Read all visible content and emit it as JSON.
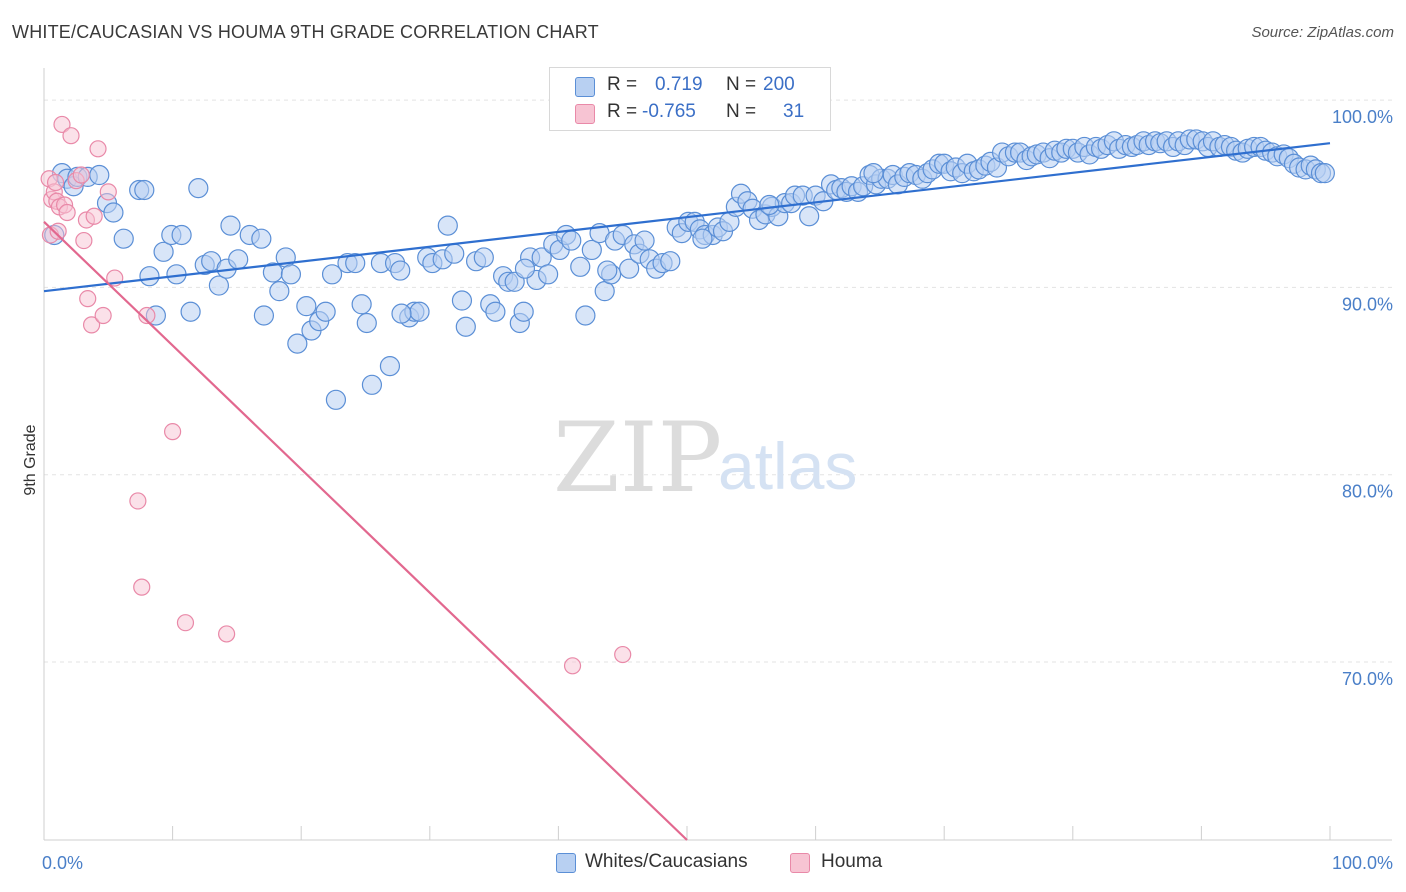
{
  "title": "WHITE/CAUCASIAN VS HOUMA 9TH GRADE CORRELATION CHART",
  "source": "Source: ZipAtlas.com",
  "watermark": {
    "zip": "ZIP",
    "atlas": "atlas"
  },
  "colors": {
    "blue_fill": "#b8d0f2",
    "blue_stroke": "#5b8fd6",
    "blue_line": "#2f6fcf",
    "pink_fill": "#f7c4d3",
    "pink_stroke": "#e989a8",
    "pink_line": "#e2688f",
    "grid": "#e3e3e3",
    "axis_label": "#4a7fc8"
  },
  "legend_top": {
    "rows": [
      {
        "r_label": "R =",
        "r_value": "0.719",
        "n_label": "N =",
        "n_value": "200"
      },
      {
        "r_label": "R =",
        "r_value": "-0.765",
        "n_label": "N =",
        "n_value": "31"
      }
    ]
  },
  "legend_bottom": {
    "items": [
      "Whites/Caucasians",
      "Houma"
    ]
  },
  "chart_data": {
    "type": "scatter",
    "xlabel": "",
    "ylabel": "9th Grade",
    "xlim": [
      0,
      100
    ],
    "ylim": [
      60.5,
      101.5
    ],
    "x_tick_labels": [
      "0.0%",
      "100.0%"
    ],
    "y_ticks": [
      70,
      80,
      90,
      100
    ],
    "y_tick_labels": [
      "70.0%",
      "80.0%",
      "90.0%",
      "100.0%"
    ],
    "grid": true,
    "legend_placement": "bottom",
    "series": [
      {
        "name": "Whites/Caucasians",
        "trend": {
          "x0": 0,
          "y0": 89.8,
          "x1": 100,
          "y1": 97.7
        },
        "points": [
          [
            0.8,
            92.8
          ],
          [
            1.4,
            96.1
          ],
          [
            1.8,
            95.8
          ],
          [
            2.3,
            95.4
          ],
          [
            2.6,
            95.9
          ],
          [
            3.4,
            95.9
          ],
          [
            4.3,
            96.0
          ],
          [
            4.9,
            94.5
          ],
          [
            5.4,
            94.0
          ],
          [
            6.2,
            92.6
          ],
          [
            7.4,
            95.2
          ],
          [
            7.8,
            95.2
          ],
          [
            8.2,
            90.6
          ],
          [
            8.7,
            88.5
          ],
          [
            9.3,
            91.9
          ],
          [
            9.9,
            92.8
          ],
          [
            10.3,
            90.7
          ],
          [
            10.7,
            92.8
          ],
          [
            11.4,
            88.7
          ],
          [
            12.0,
            95.3
          ],
          [
            12.5,
            91.2
          ],
          [
            13.0,
            91.4
          ],
          [
            13.6,
            90.1
          ],
          [
            14.2,
            91.0
          ],
          [
            14.5,
            93.3
          ],
          [
            15.1,
            91.5
          ],
          [
            16.0,
            92.8
          ],
          [
            16.9,
            92.6
          ],
          [
            17.1,
            88.5
          ],
          [
            17.8,
            90.8
          ],
          [
            18.3,
            89.8
          ],
          [
            18.8,
            91.6
          ],
          [
            19.2,
            90.7
          ],
          [
            19.7,
            87.0
          ],
          [
            20.4,
            89.0
          ],
          [
            20.8,
            87.7
          ],
          [
            21.4,
            88.2
          ],
          [
            21.9,
            88.7
          ],
          [
            22.4,
            90.7
          ],
          [
            22.7,
            84.0
          ],
          [
            23.6,
            91.3
          ],
          [
            24.2,
            91.3
          ],
          [
            24.7,
            89.1
          ],
          [
            25.1,
            88.1
          ],
          [
            25.5,
            84.8
          ],
          [
            26.2,
            91.3
          ],
          [
            26.9,
            85.8
          ],
          [
            27.3,
            91.3
          ],
          [
            27.7,
            90.9
          ],
          [
            28.4,
            88.4
          ],
          [
            28.8,
            88.7
          ],
          [
            29.2,
            88.7
          ],
          [
            29.8,
            91.6
          ],
          [
            30.2,
            91.3
          ],
          [
            31.0,
            91.5
          ],
          [
            31.4,
            93.3
          ],
          [
            31.9,
            91.8
          ],
          [
            32.5,
            89.3
          ],
          [
            32.8,
            87.9
          ],
          [
            33.6,
            91.4
          ],
          [
            34.2,
            91.6
          ],
          [
            34.7,
            89.1
          ],
          [
            35.1,
            88.7
          ],
          [
            35.7,
            90.6
          ],
          [
            36.1,
            90.3
          ],
          [
            36.6,
            90.3
          ],
          [
            37.0,
            88.1
          ],
          [
            37.3,
            88.7
          ],
          [
            37.8,
            91.6
          ],
          [
            38.3,
            90.4
          ],
          [
            38.7,
            91.6
          ],
          [
            39.2,
            90.7
          ],
          [
            39.6,
            92.3
          ],
          [
            40.1,
            92.0
          ],
          [
            40.6,
            92.8
          ],
          [
            41.0,
            92.5
          ],
          [
            41.7,
            91.1
          ],
          [
            42.1,
            88.5
          ],
          [
            42.6,
            92.0
          ],
          [
            43.2,
            92.9
          ],
          [
            43.6,
            89.8
          ],
          [
            44.1,
            90.7
          ],
          [
            44.4,
            92.5
          ],
          [
            45.0,
            92.8
          ],
          [
            45.5,
            91.0
          ],
          [
            45.9,
            92.3
          ],
          [
            46.3,
            91.8
          ],
          [
            46.7,
            92.5
          ],
          [
            47.1,
            91.5
          ],
          [
            47.6,
            91.0
          ],
          [
            48.1,
            91.3
          ],
          [
            48.7,
            91.4
          ],
          [
            49.2,
            93.2
          ],
          [
            49.6,
            92.9
          ],
          [
            50.1,
            93.5
          ],
          [
            50.6,
            93.5
          ],
          [
            51.0,
            93.1
          ],
          [
            51.4,
            92.8
          ],
          [
            52.0,
            92.8
          ],
          [
            52.4,
            93.2
          ],
          [
            52.8,
            93.0
          ],
          [
            53.3,
            93.5
          ],
          [
            53.8,
            94.3
          ],
          [
            54.2,
            95.0
          ],
          [
            54.7,
            94.6
          ],
          [
            55.1,
            94.2
          ],
          [
            55.6,
            93.6
          ],
          [
            56.1,
            93.9
          ],
          [
            56.6,
            94.3
          ],
          [
            57.1,
            93.8
          ],
          [
            57.6,
            94.5
          ],
          [
            58.1,
            94.5
          ],
          [
            58.4,
            94.9
          ],
          [
            59.0,
            94.9
          ],
          [
            59.5,
            93.8
          ],
          [
            60.0,
            94.9
          ],
          [
            60.6,
            94.6
          ],
          [
            61.2,
            95.5
          ],
          [
            61.6,
            95.2
          ],
          [
            62.0,
            95.3
          ],
          [
            62.4,
            95.1
          ],
          [
            62.8,
            95.4
          ],
          [
            63.3,
            95.1
          ],
          [
            63.7,
            95.4
          ],
          [
            64.2,
            96.0
          ],
          [
            64.7,
            95.5
          ],
          [
            65.1,
            95.8
          ],
          [
            65.6,
            95.8
          ],
          [
            66.0,
            96.0
          ],
          [
            66.4,
            95.5
          ],
          [
            66.9,
            95.9
          ],
          [
            67.3,
            96.1
          ],
          [
            67.8,
            96.0
          ],
          [
            68.3,
            95.8
          ],
          [
            68.7,
            96.1
          ],
          [
            69.1,
            96.3
          ],
          [
            69.6,
            96.6
          ],
          [
            70.0,
            96.6
          ],
          [
            70.5,
            96.2
          ],
          [
            70.9,
            96.4
          ],
          [
            71.4,
            96.1
          ],
          [
            71.8,
            96.6
          ],
          [
            72.3,
            96.2
          ],
          [
            72.7,
            96.3
          ],
          [
            73.2,
            96.5
          ],
          [
            73.6,
            96.7
          ],
          [
            74.1,
            96.4
          ],
          [
            74.5,
            97.2
          ],
          [
            75.0,
            97.0
          ],
          [
            75.5,
            97.2
          ],
          [
            75.9,
            97.2
          ],
          [
            76.4,
            96.8
          ],
          [
            76.8,
            97.0
          ],
          [
            77.2,
            97.1
          ],
          [
            77.7,
            97.2
          ],
          [
            78.2,
            96.9
          ],
          [
            78.6,
            97.3
          ],
          [
            79.1,
            97.2
          ],
          [
            79.5,
            97.4
          ],
          [
            80.0,
            97.4
          ],
          [
            80.4,
            97.2
          ],
          [
            80.9,
            97.5
          ],
          [
            81.3,
            97.1
          ],
          [
            81.8,
            97.5
          ],
          [
            82.2,
            97.4
          ],
          [
            82.7,
            97.6
          ],
          [
            83.2,
            97.8
          ],
          [
            83.6,
            97.4
          ],
          [
            84.1,
            97.6
          ],
          [
            84.6,
            97.5
          ],
          [
            85.0,
            97.6
          ],
          [
            85.5,
            97.8
          ],
          [
            85.9,
            97.6
          ],
          [
            86.4,
            97.8
          ],
          [
            86.8,
            97.7
          ],
          [
            87.3,
            97.8
          ],
          [
            87.8,
            97.5
          ],
          [
            88.2,
            97.8
          ],
          [
            88.7,
            97.6
          ],
          [
            89.1,
            97.9
          ],
          [
            89.6,
            97.9
          ],
          [
            90.1,
            97.8
          ],
          [
            90.5,
            97.5
          ],
          [
            90.9,
            97.8
          ],
          [
            91.4,
            97.5
          ],
          [
            91.8,
            97.6
          ],
          [
            92.3,
            97.5
          ],
          [
            92.7,
            97.3
          ],
          [
            93.2,
            97.2
          ],
          [
            93.6,
            97.4
          ],
          [
            94.1,
            97.5
          ],
          [
            94.6,
            97.5
          ],
          [
            95.0,
            97.3
          ],
          [
            95.5,
            97.2
          ],
          [
            95.9,
            97.0
          ],
          [
            96.4,
            97.1
          ],
          [
            96.8,
            96.9
          ],
          [
            97.2,
            96.6
          ],
          [
            97.6,
            96.4
          ],
          [
            98.1,
            96.3
          ],
          [
            98.5,
            96.5
          ],
          [
            98.9,
            96.3
          ],
          [
            99.3,
            96.1
          ],
          [
            99.6,
            96.1
          ],
          [
            37.4,
            91.0
          ],
          [
            27.8,
            88.6
          ],
          [
            43.8,
            90.9
          ],
          [
            51.2,
            92.6
          ],
          [
            56.4,
            94.4
          ],
          [
            64.5,
            96.1
          ]
        ]
      },
      {
        "name": "Houma",
        "trend": {
          "x0": 0,
          "y0": 93.5,
          "x1": 50,
          "y1": 60.5
        },
        "points": [
          [
            0.4,
            95.8
          ],
          [
            0.6,
            94.7
          ],
          [
            0.8,
            95.1
          ],
          [
            1.0,
            94.6
          ],
          [
            1.2,
            94.3
          ],
          [
            1.4,
            98.7
          ],
          [
            1.6,
            94.4
          ],
          [
            1.8,
            94.0
          ],
          [
            2.1,
            98.1
          ],
          [
            2.5,
            95.7
          ],
          [
            2.9,
            96.0
          ],
          [
            3.1,
            92.5
          ],
          [
            3.3,
            93.6
          ],
          [
            3.7,
            88.0
          ],
          [
            3.9,
            93.8
          ],
          [
            4.2,
            97.4
          ],
          [
            4.6,
            88.5
          ],
          [
            5.0,
            95.1
          ],
          [
            5.5,
            90.5
          ],
          [
            8.0,
            88.5
          ],
          [
            10.0,
            82.3
          ],
          [
            7.3,
            78.6
          ],
          [
            7.6,
            74.0
          ],
          [
            11.0,
            72.1
          ],
          [
            14.2,
            71.5
          ],
          [
            41.1,
            69.8
          ],
          [
            45.0,
            70.4
          ],
          [
            0.5,
            92.8
          ],
          [
            0.9,
            95.6
          ],
          [
            1.1,
            93.0
          ],
          [
            3.4,
            89.4
          ]
        ]
      }
    ]
  }
}
